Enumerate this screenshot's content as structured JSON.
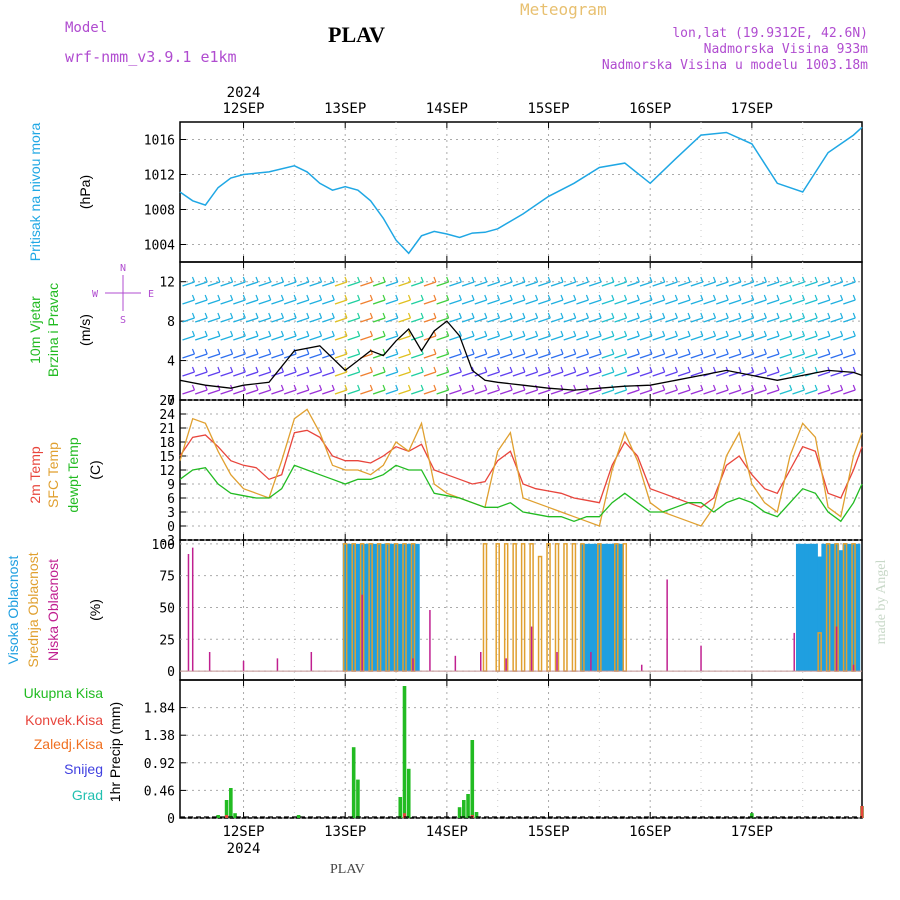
{
  "header": {
    "model_label": "Model",
    "model_name": "wrf-nmm_v3.9.1  e1km",
    "station": "PLAV",
    "title": "Meteogram",
    "location": "lon,lat (19.9312E, 42.6N)",
    "elevation": "Nadmorska Visina 933m",
    "model_elevation": "Nadmorska Visina u modelu 1003.18m",
    "credit": "made by Angel",
    "footer_station": "PLAV"
  },
  "colors": {
    "pressure": "#1fa7e4",
    "wind_speed": "#000000",
    "temp_2m": "#e8453c",
    "temp_sfc": "#e0a030",
    "dewpoint": "#22bb22",
    "cloud_high": "#1f9fe0",
    "cloud_mid": "#e0a030",
    "cloud_low": "#c02090",
    "precip_total": "#22bb22",
    "precip_conv": "#e8453c",
    "precip_frozen": "#f07020",
    "snow": "#4040e0",
    "hail": "#22c0b0",
    "purple_text": "#b04cd0",
    "title_orange": "#e8c070"
  },
  "chart_data": {
    "time_axis": {
      "year": "2024",
      "days": [
        "12SEP",
        "13SEP",
        "14SEP",
        "15SEP",
        "16SEP",
        "17SEP"
      ],
      "x_range_hours": [
        -15,
        146
      ]
    },
    "pressure": {
      "type": "line",
      "ylabel": "Pritisak na nivou mora",
      "unit": "(hPa)",
      "ylim": [
        1002,
        1018
      ],
      "yticks": [
        1004,
        1008,
        1012,
        1016
      ],
      "x": [
        -15,
        -12,
        -9,
        -6,
        -3,
        0,
        6,
        12,
        15,
        18,
        21,
        24,
        27,
        30,
        33,
        36,
        39,
        42,
        45,
        48,
        51,
        54,
        57,
        60,
        66,
        72,
        78,
        84,
        90,
        96,
        102,
        108,
        114,
        120,
        126,
        132,
        138,
        144,
        146
      ],
      "values": [
        1010,
        1009,
        1008.5,
        1010.5,
        1011.6,
        1012,
        1012.3,
        1013,
        1012.3,
        1011,
        1010.2,
        1010.6,
        1010.2,
        1009,
        1007,
        1004.5,
        1003,
        1005,
        1005.5,
        1005.2,
        1004.8,
        1005.3,
        1005.4,
        1005.8,
        1007.5,
        1009.5,
        1011,
        1012.8,
        1013.3,
        1011,
        1013.8,
        1016.5,
        1016.8,
        1015.5,
        1011,
        1010,
        1014.5,
        1016.5,
        1017.4
      ]
    },
    "wind": {
      "type": "line",
      "ylabel": "10m Vjetar Brzina i Pravac",
      "unit": "(m/s)",
      "compass": [
        "N",
        "S",
        "W",
        "E"
      ],
      "ylim": [
        0,
        14
      ],
      "yticks": [
        0,
        4,
        8,
        12
      ],
      "x": [
        -15,
        -9,
        -3,
        0,
        6,
        12,
        18,
        24,
        27,
        30,
        33,
        36,
        39,
        42,
        45,
        48,
        51,
        54,
        57,
        60,
        66,
        72,
        78,
        84,
        90,
        96,
        102,
        108,
        114,
        120,
        126,
        132,
        138,
        144,
        146
      ],
      "values": [
        2.0,
        1.5,
        1.2,
        1.5,
        1.8,
        5.0,
        5.5,
        3.0,
        4.0,
        5.0,
        4.5,
        6.0,
        7.2,
        5.0,
        7.0,
        8.0,
        6.5,
        3.0,
        2.0,
        1.8,
        1.5,
        1.2,
        1.0,
        1.2,
        1.4,
        1.5,
        2.0,
        2.5,
        3.0,
        2.5,
        2.0,
        2.5,
        3.0,
        2.8,
        2.5
      ]
    },
    "temperature": {
      "type": "line",
      "ylabels": [
        "2m Temp",
        "SFC Temp",
        "dewpt Temp"
      ],
      "unit": "(C)",
      "ylim": [
        -3,
        27
      ],
      "yticks": [
        -3,
        0,
        3,
        6,
        9,
        12,
        15,
        18,
        21,
        24,
        27
      ],
      "x": [
        -15,
        -12,
        -9,
        -6,
        -3,
        0,
        3,
        6,
        9,
        12,
        15,
        18,
        21,
        24,
        27,
        30,
        33,
        36,
        39,
        42,
        45,
        48,
        51,
        54,
        57,
        60,
        63,
        66,
        69,
        72,
        75,
        78,
        81,
        84,
        87,
        90,
        93,
        96,
        99,
        102,
        105,
        108,
        111,
        114,
        117,
        120,
        123,
        126,
        129,
        132,
        135,
        138,
        141,
        144,
        146
      ],
      "series": [
        {
          "name": "2m Temp",
          "color": "#e8453c",
          "values": [
            15,
            19,
            19.5,
            17,
            14,
            13,
            12.5,
            10,
            11,
            20,
            20.5,
            19,
            15,
            14,
            14,
            13.5,
            15,
            17,
            16,
            17.5,
            12,
            11,
            10,
            9,
            9.5,
            14,
            16,
            9,
            8,
            7.5,
            7,
            6,
            5.5,
            5,
            13,
            18,
            15,
            8,
            7,
            6,
            5,
            4,
            6,
            13,
            15,
            11,
            8,
            7,
            12,
            17,
            16,
            7,
            6,
            12,
            17
          ]
        },
        {
          "name": "SFC Temp",
          "color": "#e0a030",
          "values": [
            14,
            23,
            22,
            16,
            11,
            8,
            7,
            6,
            14,
            23,
            25,
            20,
            13,
            12,
            12,
            11,
            13,
            18,
            16,
            22,
            9,
            7,
            6,
            5,
            4,
            16,
            20,
            6,
            5,
            4,
            3,
            2,
            1,
            0,
            12,
            20,
            14,
            5,
            3,
            2,
            1,
            0,
            4,
            15,
            20,
            9,
            5,
            3,
            15,
            22,
            19,
            4,
            2,
            15,
            20
          ]
        },
        {
          "name": "dewpt Temp",
          "color": "#22bb22",
          "values": [
            10,
            12,
            12.5,
            9,
            7,
            6.5,
            6,
            6,
            8,
            13,
            12,
            11,
            10,
            9,
            10,
            10,
            11,
            13,
            12,
            12,
            7,
            6.5,
            6,
            5,
            4,
            4,
            5,
            3,
            2.5,
            2,
            2,
            1,
            2,
            2,
            5,
            7,
            5,
            3,
            3,
            4,
            5,
            5,
            3,
            5,
            6,
            5,
            3,
            2,
            5,
            8,
            7,
            3,
            1,
            5,
            9
          ]
        }
      ]
    },
    "clouds": {
      "type": "bar",
      "ylabels": [
        "Visoka Oblacnost",
        "Srednja Oblacnost",
        "Niska Oblacnost"
      ],
      "unit": "(%)",
      "ylim": [
        0,
        100
      ],
      "yticks": [
        0,
        25,
        50,
        75,
        100
      ],
      "high": [
        [
          24,
          100
        ],
        [
          25,
          100
        ],
        [
          26,
          100
        ],
        [
          27,
          100
        ],
        [
          28,
          100
        ],
        [
          29,
          100
        ],
        [
          30,
          100
        ],
        [
          31,
          100
        ],
        [
          32,
          100
        ],
        [
          33,
          100
        ],
        [
          34,
          100
        ],
        [
          35,
          100
        ],
        [
          36,
          100
        ],
        [
          37,
          100
        ],
        [
          38,
          100
        ],
        [
          39,
          100
        ],
        [
          40,
          100
        ],
        [
          41,
          100
        ],
        [
          80,
          100
        ],
        [
          81,
          100
        ],
        [
          82,
          100
        ],
        [
          83,
          100
        ],
        [
          84,
          100
        ],
        [
          85,
          100
        ],
        [
          86,
          100
        ],
        [
          87,
          100
        ],
        [
          88,
          100
        ],
        [
          89,
          100
        ],
        [
          131,
          100
        ],
        [
          132,
          100
        ],
        [
          133,
          100
        ],
        [
          134,
          100
        ],
        [
          135,
          100
        ],
        [
          136,
          90
        ],
        [
          137,
          100
        ],
        [
          138,
          100
        ],
        [
          139,
          100
        ],
        [
          140,
          100
        ],
        [
          141,
          95
        ],
        [
          142,
          100
        ],
        [
          143,
          100
        ],
        [
          144,
          100
        ],
        [
          145,
          100
        ]
      ],
      "mid": [
        [
          24,
          100
        ],
        [
          26,
          100
        ],
        [
          28,
          100
        ],
        [
          30,
          100
        ],
        [
          32,
          100
        ],
        [
          34,
          100
        ],
        [
          36,
          100
        ],
        [
          38,
          100
        ],
        [
          40,
          100
        ],
        [
          57,
          100
        ],
        [
          60,
          100
        ],
        [
          62,
          100
        ],
        [
          64,
          100
        ],
        [
          66,
          100
        ],
        [
          68,
          100
        ],
        [
          70,
          90
        ],
        [
          72,
          100
        ],
        [
          74,
          100
        ],
        [
          76,
          100
        ],
        [
          78,
          100
        ],
        [
          80,
          100
        ],
        [
          84,
          100
        ],
        [
          88,
          100
        ],
        [
          90,
          100
        ],
        [
          136,
          30
        ],
        [
          138,
          100
        ],
        [
          140,
          100
        ],
        [
          142,
          100
        ],
        [
          144,
          100
        ]
      ],
      "low": [
        [
          -13,
          92
        ],
        [
          -12,
          97
        ],
        [
          -8,
          15
        ],
        [
          0,
          8
        ],
        [
          8,
          10
        ],
        [
          16,
          15
        ],
        [
          28,
          60
        ],
        [
          40,
          10
        ],
        [
          44,
          48
        ],
        [
          50,
          12
        ],
        [
          56,
          15
        ],
        [
          62,
          10
        ],
        [
          68,
          35
        ],
        [
          74,
          15
        ],
        [
          82,
          15
        ],
        [
          94,
          5
        ],
        [
          100,
          72
        ],
        [
          108,
          20
        ],
        [
          130,
          30
        ],
        [
          140,
          35
        ],
        [
          144,
          5
        ]
      ]
    },
    "precip": {
      "type": "bar",
      "ylabels": [
        "Ukupna Kisa",
        "Konvek.Kisa",
        "Zaledj.Kisa",
        "Snijeg",
        "Grad"
      ],
      "ylabel": "1hr Precip",
      "unit": "(mm)",
      "ylim": [
        0,
        2.3
      ],
      "yticks": [
        0,
        0.46,
        0.92,
        1.38,
        1.84
      ],
      "total": [
        [
          -6,
          0.05
        ],
        [
          -4,
          0.3
        ],
        [
          -3,
          0.5
        ],
        [
          -2,
          0.08
        ],
        [
          13,
          0.05
        ],
        [
          26,
          1.18
        ],
        [
          27,
          0.64
        ],
        [
          37,
          0.35
        ],
        [
          38,
          2.2
        ],
        [
          39,
          0.82
        ],
        [
          51,
          0.18
        ],
        [
          52,
          0.3
        ],
        [
          53,
          0.4
        ],
        [
          54,
          1.3
        ],
        [
          55,
          0.1
        ],
        [
          120,
          0.08
        ],
        [
          146,
          0.2
        ]
      ],
      "conv": [
        [
          -4,
          0.05
        ],
        [
          38,
          0.08
        ],
        [
          54,
          0.05
        ],
        [
          146,
          0.2
        ]
      ],
      "frozen": [],
      "snow": [],
      "hail": []
    }
  }
}
